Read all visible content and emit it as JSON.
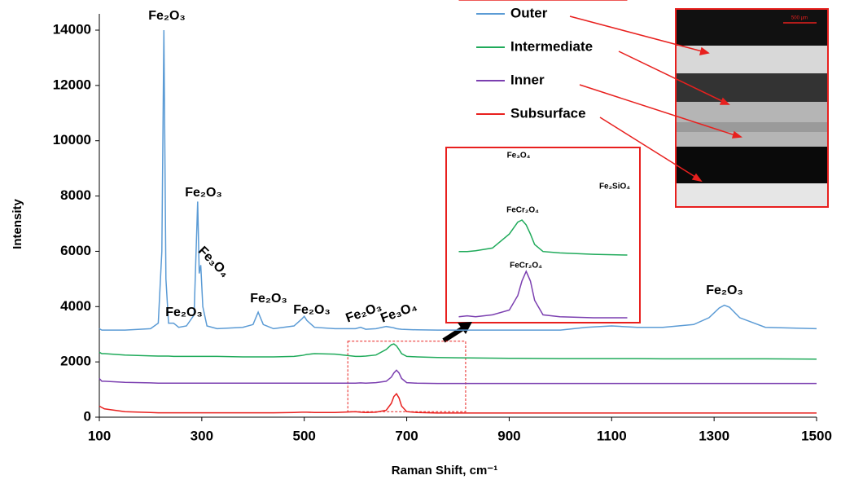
{
  "chart_data": {
    "type": "line",
    "xlabel": "Raman Shift, cm⁻¹",
    "ylabel": "Intensity",
    "x": [
      100,
      105,
      110,
      150,
      200,
      215,
      222,
      226,
      230,
      235,
      245,
      255,
      270,
      285,
      292,
      295,
      298,
      302,
      310,
      330,
      380,
      400,
      410,
      420,
      440,
      480,
      495,
      500,
      505,
      520,
      560,
      600,
      610,
      620,
      640,
      660,
      670,
      675,
      680,
      685,
      690,
      700,
      720,
      760,
      800,
      900,
      1000,
      1050,
      1100,
      1150,
      1200,
      1260,
      1290,
      1310,
      1320,
      1330,
      1350,
      1400,
      1500
    ],
    "series": [
      {
        "name": "Outer",
        "color": "#5b9bd5",
        "values": [
          3200,
          3150,
          3150,
          3150,
          3200,
          3400,
          6000,
          14000,
          5000,
          3400,
          3400,
          3250,
          3300,
          3700,
          7800,
          5200,
          5500,
          4000,
          3300,
          3200,
          3250,
          3350,
          3800,
          3350,
          3200,
          3300,
          3550,
          3650,
          3500,
          3250,
          3200,
          3200,
          3250,
          3180,
          3200,
          3280,
          3250,
          3230,
          3200,
          3190,
          3180,
          3170,
          3160,
          3150,
          3150,
          3150,
          3150,
          3250,
          3300,
          3250,
          3250,
          3350,
          3600,
          3950,
          4050,
          3980,
          3600,
          3250,
          3200
        ]
      },
      {
        "name": "Intermediate",
        "color": "#1faa5a",
        "values": [
          2350,
          2300,
          2300,
          2250,
          2220,
          2210,
          2210,
          2210,
          2210,
          2210,
          2200,
          2200,
          2200,
          2200,
          2200,
          2200,
          2200,
          2200,
          2200,
          2200,
          2180,
          2180,
          2180,
          2180,
          2180,
          2200,
          2230,
          2250,
          2270,
          2300,
          2280,
          2200,
          2200,
          2210,
          2250,
          2450,
          2620,
          2650,
          2580,
          2450,
          2300,
          2200,
          2180,
          2160,
          2150,
          2130,
          2120,
          2120,
          2120,
          2120,
          2110,
          2110,
          2110,
          2110,
          2110,
          2110,
          2110,
          2110,
          2100
        ]
      },
      {
        "name": "Inner",
        "color": "#7b3fb0",
        "values": [
          1400,
          1300,
          1300,
          1260,
          1240,
          1230,
          1230,
          1230,
          1230,
          1230,
          1230,
          1230,
          1230,
          1230,
          1230,
          1230,
          1230,
          1230,
          1230,
          1230,
          1230,
          1230,
          1230,
          1230,
          1230,
          1230,
          1230,
          1230,
          1230,
          1230,
          1230,
          1230,
          1240,
          1230,
          1250,
          1300,
          1450,
          1600,
          1700,
          1600,
          1400,
          1250,
          1230,
          1220,
          1220,
          1220,
          1220,
          1220,
          1220,
          1220,
          1220,
          1220,
          1220,
          1220,
          1220,
          1220,
          1220,
          1220,
          1220
        ]
      },
      {
        "name": "Subsurface",
        "color": "#e8201e",
        "values": [
          400,
          350,
          300,
          200,
          170,
          160,
          160,
          160,
          160,
          160,
          160,
          160,
          160,
          160,
          160,
          160,
          160,
          160,
          160,
          160,
          160,
          160,
          160,
          160,
          160,
          170,
          180,
          180,
          180,
          170,
          170,
          200,
          180,
          170,
          180,
          250,
          500,
          750,
          850,
          700,
          400,
          200,
          170,
          150,
          150,
          150,
          150,
          150,
          150,
          150,
          150,
          150,
          150,
          150,
          150,
          150,
          150,
          150,
          150
        ]
      }
    ],
    "xlim": [
      100,
      1500
    ],
    "ylim": [
      0,
      14000
    ],
    "xticks": [
      100,
      300,
      500,
      700,
      900,
      1100,
      1300,
      1500
    ],
    "yticks": [
      0,
      2000,
      4000,
      6000,
      8000,
      10000,
      12000,
      14000
    ],
    "annotations": [
      "Fe₂O₃",
      "Fe₂O₃",
      "Fe₃O₄",
      "Fe₂O₃",
      "Fe₂O₃",
      "Fe₂O₃",
      "Fe₂O₃",
      "Fe₃O₄",
      "Fe₂O₃"
    ],
    "zoom_box": {
      "xlim": [
        585,
        815
      ],
      "ylim": [
        200,
        2750
      ]
    },
    "inset_labels": [
      "Fe₃O₄",
      "Fe₂SiO₄",
      "FeCr₂O₄",
      "FeCr₂O₄"
    ],
    "image_scale": "500 µm"
  }
}
